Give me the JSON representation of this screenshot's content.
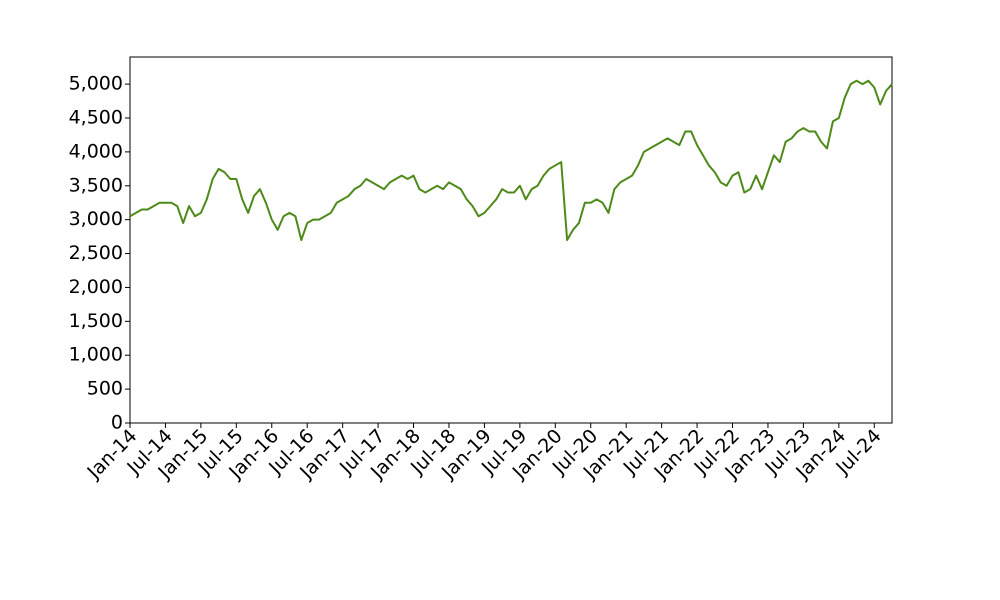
{
  "chart_data": {
    "type": "line",
    "x": [
      "2014-01",
      "2014-02",
      "2014-03",
      "2014-04",
      "2014-05",
      "2014-06",
      "2014-07",
      "2014-08",
      "2014-09",
      "2014-10",
      "2014-11",
      "2014-12",
      "2015-01",
      "2015-02",
      "2015-03",
      "2015-04",
      "2015-05",
      "2015-06",
      "2015-07",
      "2015-08",
      "2015-09",
      "2015-10",
      "2015-11",
      "2015-12",
      "2016-01",
      "2016-02",
      "2016-03",
      "2016-04",
      "2016-05",
      "2016-06",
      "2016-07",
      "2016-08",
      "2016-09",
      "2016-10",
      "2016-11",
      "2016-12",
      "2017-01",
      "2017-02",
      "2017-03",
      "2017-04",
      "2017-05",
      "2017-06",
      "2017-07",
      "2017-08",
      "2017-09",
      "2017-10",
      "2017-11",
      "2017-12",
      "2018-01",
      "2018-02",
      "2018-03",
      "2018-04",
      "2018-05",
      "2018-06",
      "2018-07",
      "2018-08",
      "2018-09",
      "2018-10",
      "2018-11",
      "2018-12",
      "2019-01",
      "2019-02",
      "2019-03",
      "2019-04",
      "2019-05",
      "2019-06",
      "2019-07",
      "2019-08",
      "2019-09",
      "2019-10",
      "2019-11",
      "2019-12",
      "2020-01",
      "2020-02",
      "2020-03",
      "2020-04",
      "2020-05",
      "2020-06",
      "2020-07",
      "2020-08",
      "2020-09",
      "2020-10",
      "2020-11",
      "2020-12",
      "2021-01",
      "2021-02",
      "2021-03",
      "2021-04",
      "2021-05",
      "2021-06",
      "2021-07",
      "2021-08",
      "2021-09",
      "2021-10",
      "2021-11",
      "2021-12",
      "2022-01",
      "2022-02",
      "2022-03",
      "2022-04",
      "2022-05",
      "2022-06",
      "2022-07",
      "2022-08",
      "2022-09",
      "2022-10",
      "2022-11",
      "2022-12",
      "2023-01",
      "2023-02",
      "2023-03",
      "2023-04",
      "2023-05",
      "2023-06",
      "2023-07",
      "2023-08",
      "2023-09",
      "2023-10",
      "2023-11",
      "2023-12",
      "2024-01",
      "2024-02",
      "2024-03",
      "2024-04",
      "2024-05",
      "2024-06",
      "2024-07",
      "2024-08",
      "2024-09",
      "2024-10"
    ],
    "series": [
      {
        "color": "#4e8a1a",
        "values": [
          3050,
          3100,
          3150,
          3150,
          3200,
          3250,
          3250,
          3250,
          3200,
          2950,
          3200,
          3050,
          3100,
          3300,
          3600,
          3750,
          3700,
          3600,
          3600,
          3300,
          3100,
          3350,
          3450,
          3250,
          3000,
          2850,
          3050,
          3100,
          3050,
          2700,
          2950,
          3000,
          3000,
          3050,
          3100,
          3250,
          3300,
          3350,
          3450,
          3500,
          3600,
          3550,
          3500,
          3450,
          3550,
          3600,
          3650,
          3600,
          3650,
          3450,
          3400,
          3450,
          3500,
          3450,
          3550,
          3500,
          3450,
          3300,
          3200,
          3050,
          3100,
          3200,
          3300,
          3450,
          3400,
          3400,
          3500,
          3300,
          3450,
          3500,
          3650,
          3750,
          3800,
          3850,
          2700,
          2850,
          2950,
          3250,
          3250,
          3300,
          3250,
          3100,
          3450,
          3550,
          3600,
          3650,
          3800,
          4000,
          4050,
          4100,
          4150,
          4200,
          4150,
          4100,
          4300,
          4300,
          4100,
          3950,
          3800,
          3700,
          3550,
          3500,
          3650,
          3700,
          3400,
          3450,
          3650,
          3450,
          3700,
          3950,
          3850,
          4150,
          4200,
          4300,
          4350,
          4300,
          4300,
          4150,
          4050,
          4450,
          4500,
          4800,
          5000,
          5050,
          5000,
          5050,
          4950,
          4700,
          4900,
          5000
        ]
      }
    ],
    "xlim": [
      "2014-01",
      "2024-10"
    ],
    "xticks": [
      {
        "value": "2014-01",
        "label": "Jan-14"
      },
      {
        "value": "2014-07",
        "label": "Jul-14"
      },
      {
        "value": "2015-01",
        "label": "Jan-15"
      },
      {
        "value": "2015-07",
        "label": "Jul-15"
      },
      {
        "value": "2016-01",
        "label": "Jan-16"
      },
      {
        "value": "2016-07",
        "label": "Jul-16"
      },
      {
        "value": "2017-01",
        "label": "Jan-17"
      },
      {
        "value": "2017-07",
        "label": "Jul-17"
      },
      {
        "value": "2018-01",
        "label": "Jan-18"
      },
      {
        "value": "2018-07",
        "label": "Jul-18"
      },
      {
        "value": "2019-01",
        "label": "Jan-19"
      },
      {
        "value": "2019-07",
        "label": "Jul-19"
      },
      {
        "value": "2020-01",
        "label": "Jan-20"
      },
      {
        "value": "2020-07",
        "label": "Jul-20"
      },
      {
        "value": "2021-01",
        "label": "Jan-21"
      },
      {
        "value": "2021-07",
        "label": "Jul-21"
      },
      {
        "value": "2022-01",
        "label": "Jan-22"
      },
      {
        "value": "2022-07",
        "label": "Jul-22"
      },
      {
        "value": "2023-01",
        "label": "Jan-23"
      },
      {
        "value": "2023-07",
        "label": "Jul-23"
      },
      {
        "value": "2024-01",
        "label": "Jan-24"
      },
      {
        "value": "2024-07",
        "label": "Jul-24"
      }
    ],
    "ylim": [
      0,
      5400
    ],
    "yticks": [
      0,
      500,
      {
        "value": 1000,
        "label": "1,000"
      },
      {
        "value": 1500,
        "label": "1,500"
      },
      {
        "value": 2000,
        "label": "2,000"
      },
      {
        "value": 2500,
        "label": "2,500"
      },
      {
        "value": 3000,
        "label": "3,000"
      },
      {
        "value": 3500,
        "label": "3,500"
      },
      {
        "value": 4000,
        "label": "4,000"
      },
      {
        "value": 4500,
        "label": "4,500"
      },
      {
        "value": 5000,
        "label": "5,000"
      }
    ],
    "grid": false
  }
}
